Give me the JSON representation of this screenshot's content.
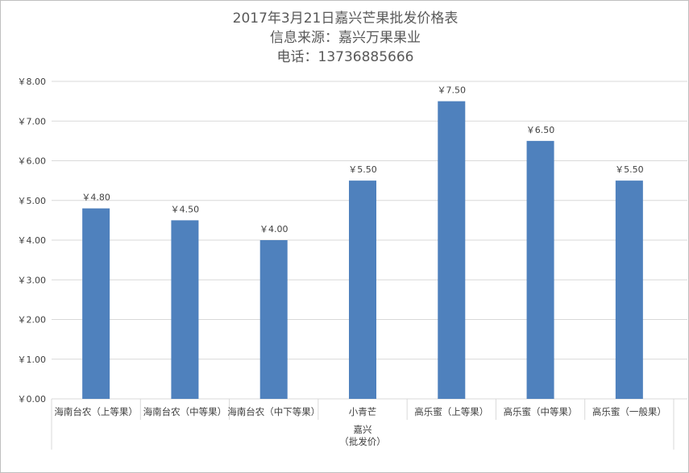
{
  "chart_data": {
    "type": "bar",
    "title_lines": [
      "2017年3月21日嘉兴芒果批发价格表",
      "信息来源：嘉兴万果果业",
      "电话：13736885666"
    ],
    "categories": [
      "海南台农（上等果）",
      "海南台农（中等果）",
      "海南台农（中下等果）",
      "小青芒",
      "高乐蜜（上等果）",
      "高乐蜜（中等果）",
      "高乐蜜（一般果）"
    ],
    "values": [
      4.8,
      4.5,
      4.0,
      5.5,
      7.5,
      6.5,
      5.5
    ],
    "data_labels": [
      "￥4.80",
      "￥4.50",
      "￥4.00",
      "￥5.50",
      "￥7.50",
      "￥6.50",
      "￥5.50"
    ],
    "y_ticks": [
      "￥0.00",
      "￥1.00",
      "￥2.00",
      "￥3.00",
      "￥4.00",
      "￥5.00",
      "￥6.00",
      "￥7.00",
      "￥8.00"
    ],
    "ylim": [
      0,
      8
    ],
    "group_label_lines": [
      "嘉兴",
      "（批发价）"
    ],
    "grid": true,
    "legend": "none",
    "bar_color": "#4f81bd",
    "grid_color": "#d9d9d9"
  }
}
